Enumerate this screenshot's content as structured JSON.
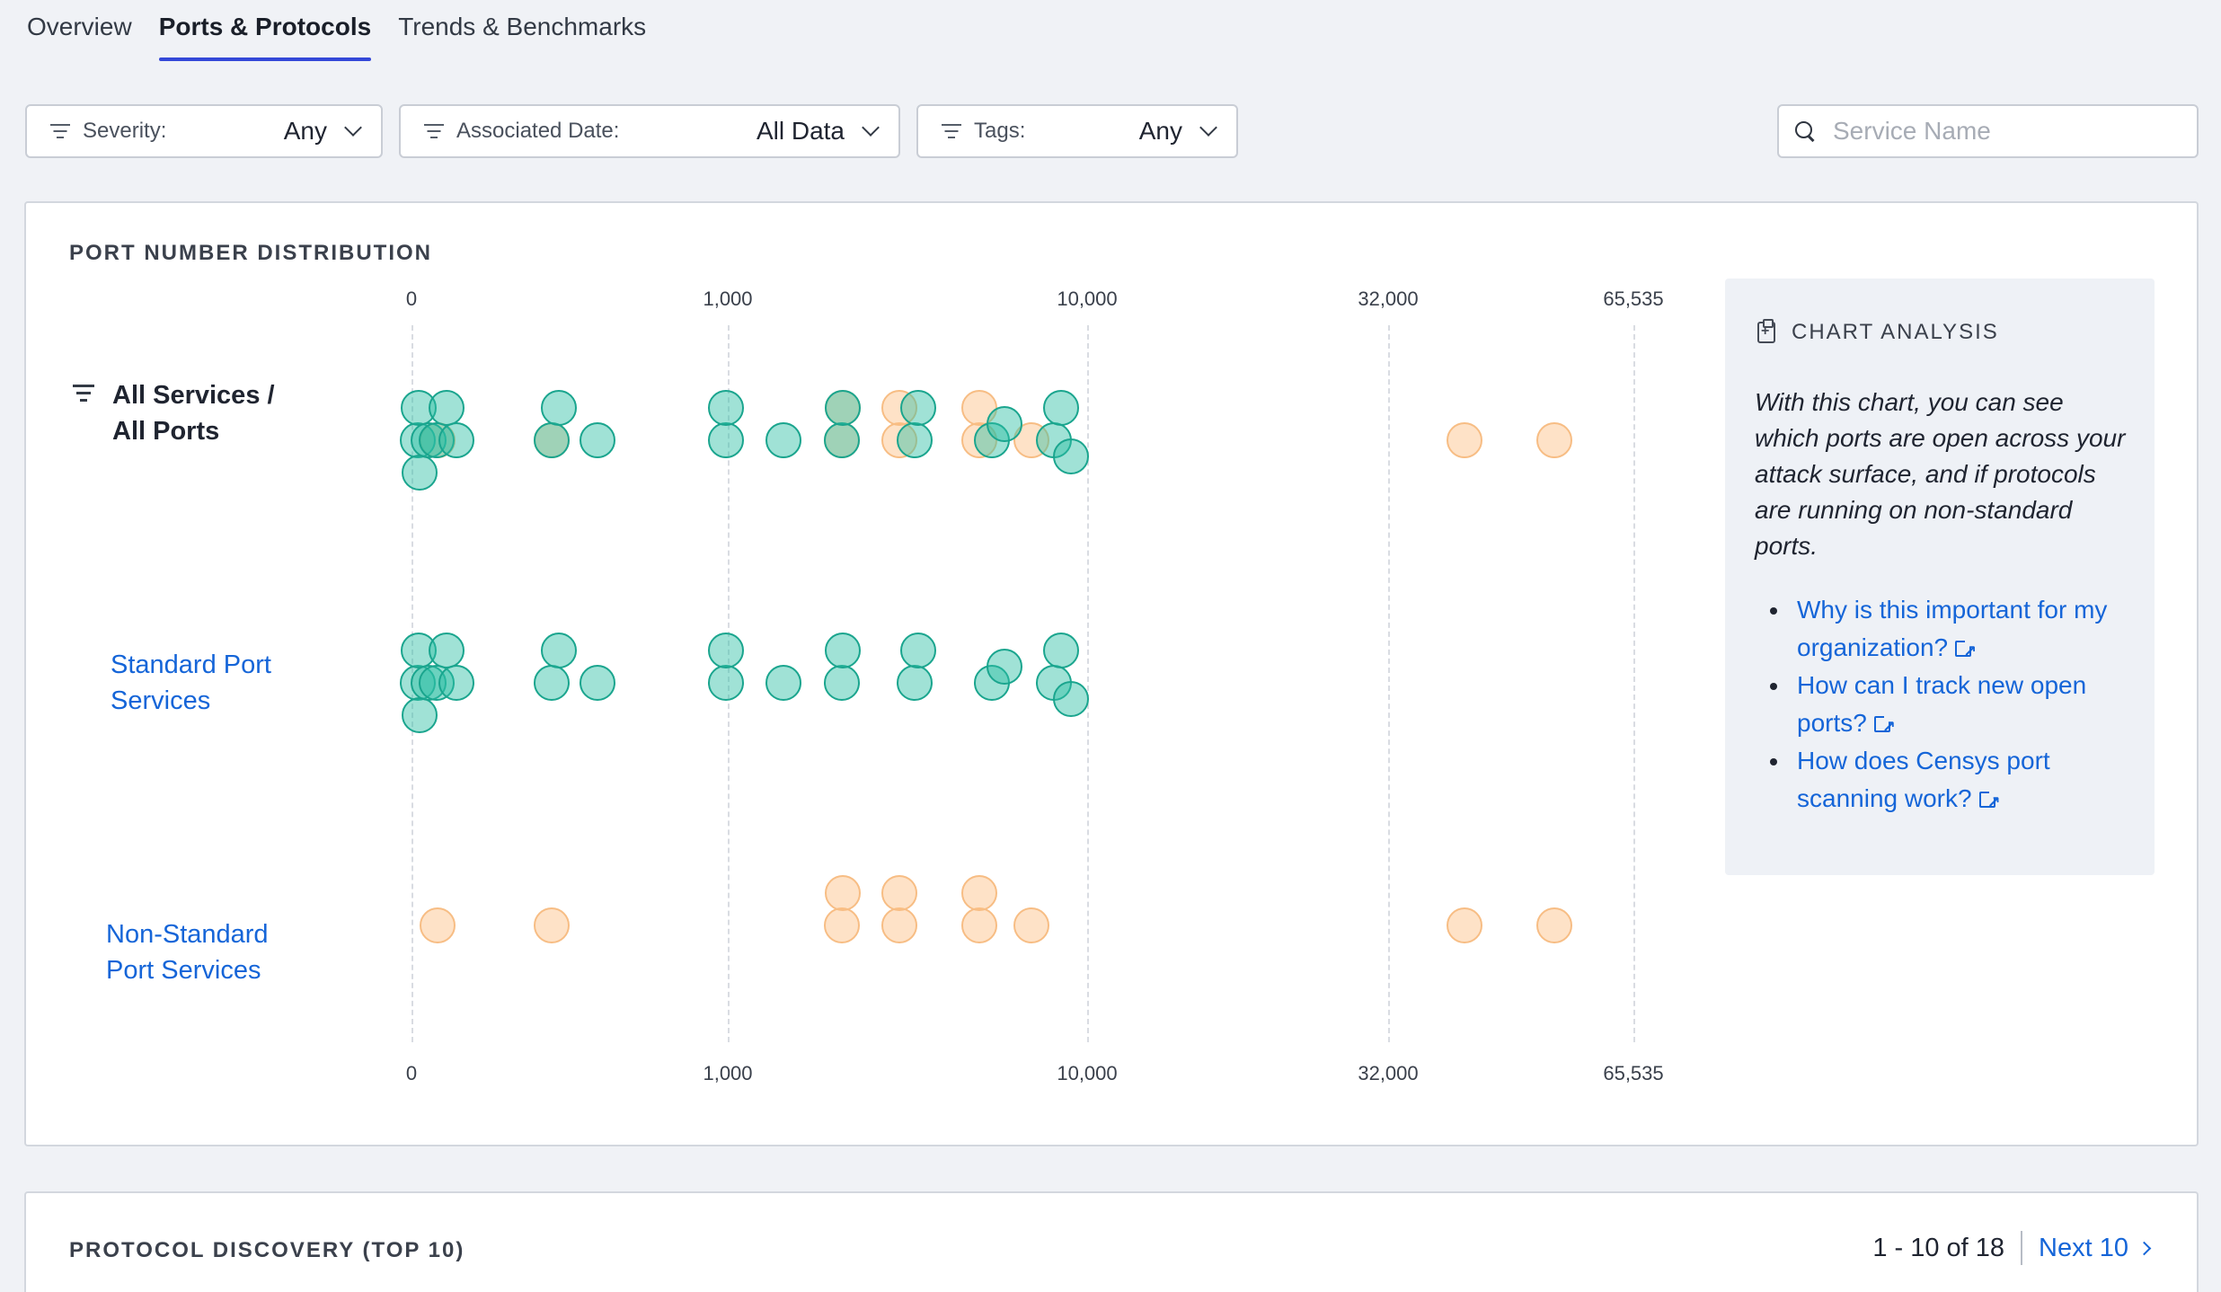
{
  "tabs": [
    {
      "label": "Overview",
      "active": false
    },
    {
      "label": "Ports & Protocols",
      "active": true
    },
    {
      "label": "Trends & Benchmarks",
      "active": false
    }
  ],
  "filters": {
    "severity": {
      "label": "Severity:",
      "value": "Any"
    },
    "date": {
      "label": "Associated Date:",
      "value": "All Data"
    },
    "tags": {
      "label": "Tags:",
      "value": "Any"
    }
  },
  "search": {
    "placeholder": "Service Name",
    "value": ""
  },
  "port_chart": {
    "title": "PORT NUMBER DISTRIBUTION",
    "rows": {
      "all": "All Services / All Ports",
      "standard": "Standard Port Services",
      "nonstandard": "Non-Standard Port Services"
    }
  },
  "chart_data": {
    "type": "scatter",
    "xaxis": {
      "scale": "piecewise",
      "ticks": [
        0,
        1000,
        10000,
        32000,
        65535
      ],
      "tick_labels": [
        "0",
        "1,000",
        "10,000",
        "32,000",
        "65,535"
      ]
    },
    "colors": {
      "standard": "#2cbea5",
      "nonstandard": "#fcbe82"
    },
    "series": [
      {
        "name": "Standard Port Services",
        "ports": [
          21,
          22,
          25,
          53,
          80,
          110,
          143,
          443,
          465,
          587,
          993,
          995,
          1433,
          2083,
          2087,
          3306,
          3389,
          5432,
          5900,
          8080,
          8443,
          9000
        ]
      },
      {
        "name": "Non-Standard Port Services",
        "ports": [
          82,
          444,
          2082,
          2086,
          3000,
          3001,
          5000,
          5001,
          7000,
          40000,
          52000
        ]
      }
    ]
  },
  "analysis": {
    "title": "CHART ANALYSIS",
    "text": "With this chart, you can see which ports are open across your attack surface, and if protocols are running on non-standard ports.",
    "links": [
      "Why is this important for my organization?",
      "How can I track new open ports?",
      "How does Censys port scanning work?"
    ]
  },
  "protocol_card": {
    "title": "PROTOCOL DISCOVERY (TOP 10)",
    "pager_text": "1 - 10 of 18",
    "next_label": "Next 10"
  }
}
